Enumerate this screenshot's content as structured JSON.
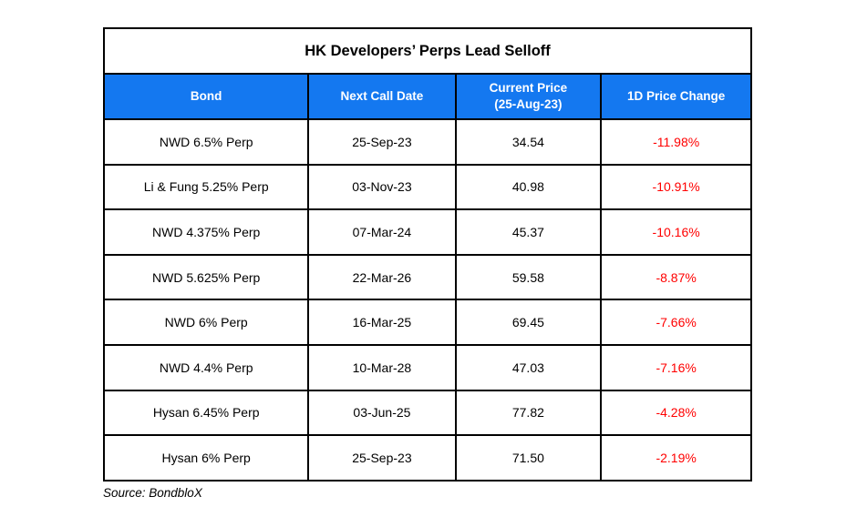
{
  "chart_data": {
    "type": "table",
    "title": "HK Developers’ Perps Lead Selloff",
    "columns": [
      "Bond",
      "Next Call Date",
      "Current Price\n(25-Aug-23)",
      "1D Price Change"
    ],
    "rows": [
      {
        "bond": "NWD 6.5% Perp",
        "next_call_date": "25-Sep-23",
        "current_price": "34.54",
        "change": "-11.98%"
      },
      {
        "bond": "Li & Fung 5.25% Perp",
        "next_call_date": "03-Nov-23",
        "current_price": "40.98",
        "change": "-10.91%"
      },
      {
        "bond": "NWD 4.375% Perp",
        "next_call_date": "07-Mar-24",
        "current_price": "45.37",
        "change": "-10.16%"
      },
      {
        "bond": "NWD 5.625% Perp",
        "next_call_date": "22-Mar-26",
        "current_price": "59.58",
        "change": "-8.87%"
      },
      {
        "bond": "NWD 6% Perp",
        "next_call_date": "16-Mar-25",
        "current_price": "69.45",
        "change": "-7.66%"
      },
      {
        "bond": "NWD 4.4% Perp",
        "next_call_date": "10-Mar-28",
        "current_price": "47.03",
        "change": "-7.16%"
      },
      {
        "bond": "Hysan 6.45% Perp",
        "next_call_date": "03-Jun-25",
        "current_price": "77.82",
        "change": "-4.28%"
      },
      {
        "bond": "Hysan 6% Perp",
        "next_call_date": "25-Sep-23",
        "current_price": "71.50",
        "change": "-2.19%"
      }
    ],
    "change_values_numeric": [
      -11.98,
      -10.91,
      -10.16,
      -8.87,
      -7.66,
      -7.16,
      -4.28,
      -2.19
    ]
  },
  "source": "Source: BondbloX",
  "colors": {
    "header_bg": "#1478F0",
    "header_text": "#FFFFFF",
    "negative": "#FF0000",
    "border": "#000000"
  }
}
